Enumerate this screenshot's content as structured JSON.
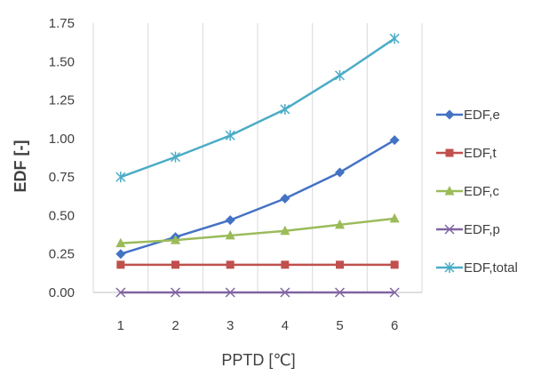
{
  "chart_data": {
    "type": "line",
    "title": "",
    "xlabel": "PPTD [℃]",
    "ylabel": "EDF [-]",
    "x": [
      1,
      2,
      3,
      4,
      5,
      6
    ],
    "ylim": [
      0,
      1.75
    ],
    "yticks": [
      "0.00",
      "0.25",
      "0.50",
      "0.75",
      "1.00",
      "1.25",
      "1.50",
      "1.75"
    ],
    "xticks": [
      "1",
      "2",
      "3",
      "4",
      "5",
      "6"
    ],
    "grid": "vertical",
    "legend_position": "right",
    "series": [
      {
        "name": "EDF,e",
        "color": "#4472C4",
        "marker": "diamond",
        "values": [
          0.25,
          0.36,
          0.47,
          0.61,
          0.78,
          0.99
        ]
      },
      {
        "name": "EDF,t",
        "color": "#C0504D",
        "marker": "square",
        "values": [
          0.18,
          0.18,
          0.18,
          0.18,
          0.18,
          0.18
        ]
      },
      {
        "name": "EDF,c",
        "color": "#9BBB59",
        "marker": "triangle",
        "values": [
          0.32,
          0.34,
          0.37,
          0.4,
          0.44,
          0.48
        ]
      },
      {
        "name": "EDF,p",
        "color": "#8064A2",
        "marker": "x",
        "values": [
          0.0,
          0.0,
          0.0,
          0.0,
          0.0,
          0.0
        ]
      },
      {
        "name": "EDF,total",
        "color": "#4BACC6",
        "marker": "asterisk",
        "values": [
          0.75,
          0.88,
          1.02,
          1.19,
          1.41,
          1.65
        ]
      }
    ]
  }
}
